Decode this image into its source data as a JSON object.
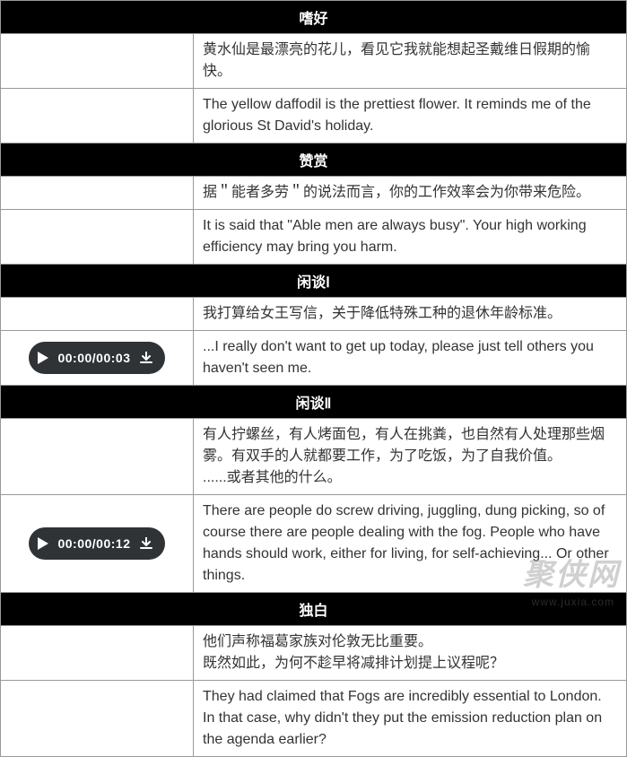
{
  "sections": [
    {
      "title": "嗜好",
      "rows": [
        {
          "audio": null,
          "text": "黄水仙是最漂亮的花儿，看见它我就能想起圣戴维日假期的愉快。"
        },
        {
          "audio": null,
          "text": "The yellow daffodil is the prettiest flower. It reminds me of the glorious St David's holiday."
        }
      ]
    },
    {
      "title": "赞赏",
      "rows": [
        {
          "audio": null,
          "text": "据＂能者多劳＂的说法而言，你的工作效率会为你带来危险。"
        },
        {
          "audio": null,
          "text": "It is said that \"Able men are always busy\". Your high working efficiency may bring you harm."
        }
      ]
    },
    {
      "title": "闲谈Ⅰ",
      "rows": [
        {
          "audio": null,
          "text": "我打算给女王写信，关于降低特殊工种的退休年龄标准。"
        },
        {
          "audio": {
            "time": "00:00/00:03"
          },
          "text": "...I really don't want to get up today, please just tell others you haven't seen me."
        }
      ]
    },
    {
      "title": "闲谈Ⅱ",
      "rows": [
        {
          "audio": null,
          "text": "有人拧螺丝，有人烤面包，有人在挑粪，也自然有人处理那些烟雾。有双手的人就都要工作，为了吃饭，为了自我价值。\n......或者其他的什么。"
        },
        {
          "audio": {
            "time": "00:00/00:12"
          },
          "text": "There are people do screw driving, juggling, dung picking, so of course there are people dealing with the fog. People who have hands should work, either for living, for self-achieving... Or other things."
        }
      ]
    },
    {
      "title": "独白",
      "rows": [
        {
          "audio": null,
          "text": "他们声称福葛家族对伦敦无比重要。\n既然如此，为何不趁早将减排计划提上议程呢？"
        },
        {
          "audio": null,
          "text": "They had claimed that Fogs are incredibly essential to London.\nIn that case, why didn't they put the emission reduction plan on the agenda earlier?"
        }
      ]
    }
  ],
  "watermark": {
    "main": "聚侠网",
    "sub": "www.juxia.com"
  },
  "colors": {
    "header_bg": "#000000",
    "header_fg": "#ffffff",
    "cell_bg": "#ffffff",
    "cell_fg": "#333333",
    "border": "#999999",
    "pill_bg": "#2f3336",
    "pill_fg": "#ffffff"
  }
}
